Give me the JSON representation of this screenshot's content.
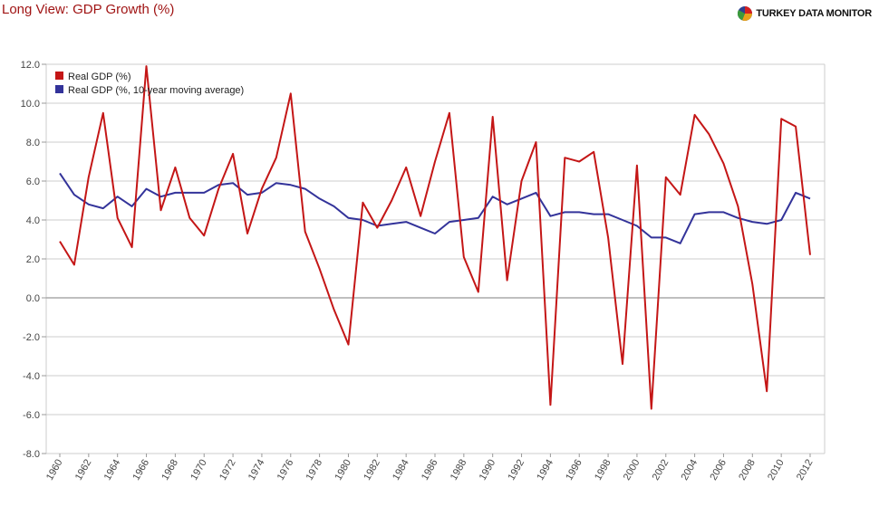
{
  "header": {
    "title": "Long View: GDP Growth (%)",
    "brand": "TURKEY DATA MONITOR"
  },
  "colors": {
    "series_real": "#c41616",
    "series_avg": "#33339a",
    "grid": "#cccccc",
    "zero_line": "#aaaaaa",
    "title": "#a01414"
  },
  "chart_data": {
    "type": "line",
    "title": "Long View: GDP Growth (%)",
    "xlabel": "",
    "ylabel": "",
    "ylim": [
      -8,
      12
    ],
    "yticks": [
      "12.0",
      "10.0",
      "8.0",
      "6.0",
      "4.0",
      "2.0",
      "0.0",
      "-2.0",
      "-4.0",
      "-6.0",
      "-8.0"
    ],
    "x": [
      1960,
      1961,
      1962,
      1963,
      1964,
      1965,
      1966,
      1967,
      1968,
      1969,
      1970,
      1971,
      1972,
      1973,
      1974,
      1975,
      1976,
      1977,
      1978,
      1979,
      1980,
      1981,
      1982,
      1983,
      1984,
      1985,
      1986,
      1987,
      1988,
      1989,
      1990,
      1991,
      1992,
      1993,
      1994,
      1995,
      1996,
      1997,
      1998,
      1999,
      2000,
      2001,
      2002,
      2003,
      2004,
      2005,
      2006,
      2007,
      2008,
      2009,
      2010,
      2011,
      2012
    ],
    "xtick_labels": [
      "1960",
      "1962",
      "1964",
      "1966",
      "1968",
      "1970",
      "1972",
      "1974",
      "1976",
      "1978",
      "1980",
      "1982",
      "1984",
      "1986",
      "1988",
      "1990",
      "1992",
      "1994",
      "1996",
      "1998",
      "2000",
      "2002",
      "2004",
      "2006",
      "2008",
      "2010",
      "2012"
    ],
    "legend_position": "top-left",
    "series": [
      {
        "name": "Real GDP (%)",
        "values": [
          2.9,
          1.7,
          6.2,
          9.5,
          4.1,
          2.6,
          11.9,
          4.5,
          6.7,
          4.1,
          3.2,
          5.6,
          7.4,
          3.3,
          5.6,
          7.2,
          10.5,
          3.4,
          1.5,
          -0.6,
          -2.4,
          4.9,
          3.6,
          5.0,
          6.7,
          4.2,
          7.0,
          9.5,
          2.1,
          0.3,
          9.3,
          0.9,
          6.0,
          8.0,
          -5.5,
          7.2,
          7.0,
          7.5,
          3.1,
          -3.4,
          6.8,
          -5.7,
          6.2,
          5.3,
          9.4,
          8.4,
          6.9,
          4.7,
          0.7,
          -4.8,
          9.2,
          8.8,
          2.2
        ]
      },
      {
        "name": "Real GDP (%, 10-year moving average)",
        "values": [
          6.4,
          5.3,
          4.8,
          4.6,
          5.2,
          4.7,
          5.6,
          5.2,
          5.4,
          5.4,
          5.4,
          5.8,
          5.9,
          5.3,
          5.4,
          5.9,
          5.8,
          5.6,
          5.1,
          4.7,
          4.1,
          4.0,
          3.7,
          3.8,
          3.9,
          3.6,
          3.3,
          3.9,
          4.0,
          4.1,
          5.2,
          4.8,
          5.1,
          5.4,
          4.2,
          4.4,
          4.4,
          4.3,
          4.3,
          4.0,
          3.7,
          3.1,
          3.1,
          2.8,
          4.3,
          4.4,
          4.4,
          4.1,
          3.9,
          3.8,
          4.0,
          5.4,
          5.1
        ]
      }
    ]
  }
}
